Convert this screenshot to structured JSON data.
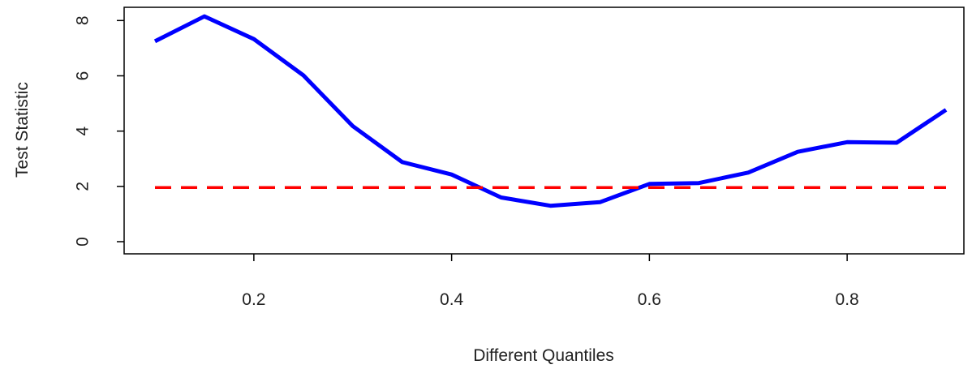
{
  "chart_data": {
    "type": "line",
    "title": "",
    "xlabel": "Different Quantiles",
    "ylabel": "Test Statistic",
    "xlim": [
      0.1,
      0.9
    ],
    "ylim": [
      0,
      8.2
    ],
    "grid": false,
    "x_ticks": [
      0.2,
      0.4,
      0.6,
      0.8
    ],
    "x_tick_labels": [
      "0.2",
      "0.4",
      "0.6",
      "0.8"
    ],
    "y_ticks": [
      0,
      2,
      4,
      6,
      8
    ],
    "y_tick_labels": [
      "0",
      "2",
      "4",
      "6",
      "8"
    ],
    "series": [
      {
        "color": "#0000ff",
        "style": "solid",
        "x": [
          0.1,
          0.15,
          0.2,
          0.25,
          0.3,
          0.35,
          0.4,
          0.45,
          0.5,
          0.55,
          0.6,
          0.65,
          0.7,
          0.75,
          0.8,
          0.85,
          0.9
        ],
        "y": [
          7.25,
          8.15,
          7.33,
          6.02,
          4.18,
          2.88,
          2.43,
          1.6,
          1.3,
          1.43,
          2.09,
          2.12,
          2.5,
          3.25,
          3.6,
          3.58,
          4.77
        ]
      },
      {
        "color": "#ff0000",
        "style": "dashed",
        "x": [
          0.1,
          0.9
        ],
        "y": [
          1.96,
          1.96
        ]
      }
    ]
  }
}
